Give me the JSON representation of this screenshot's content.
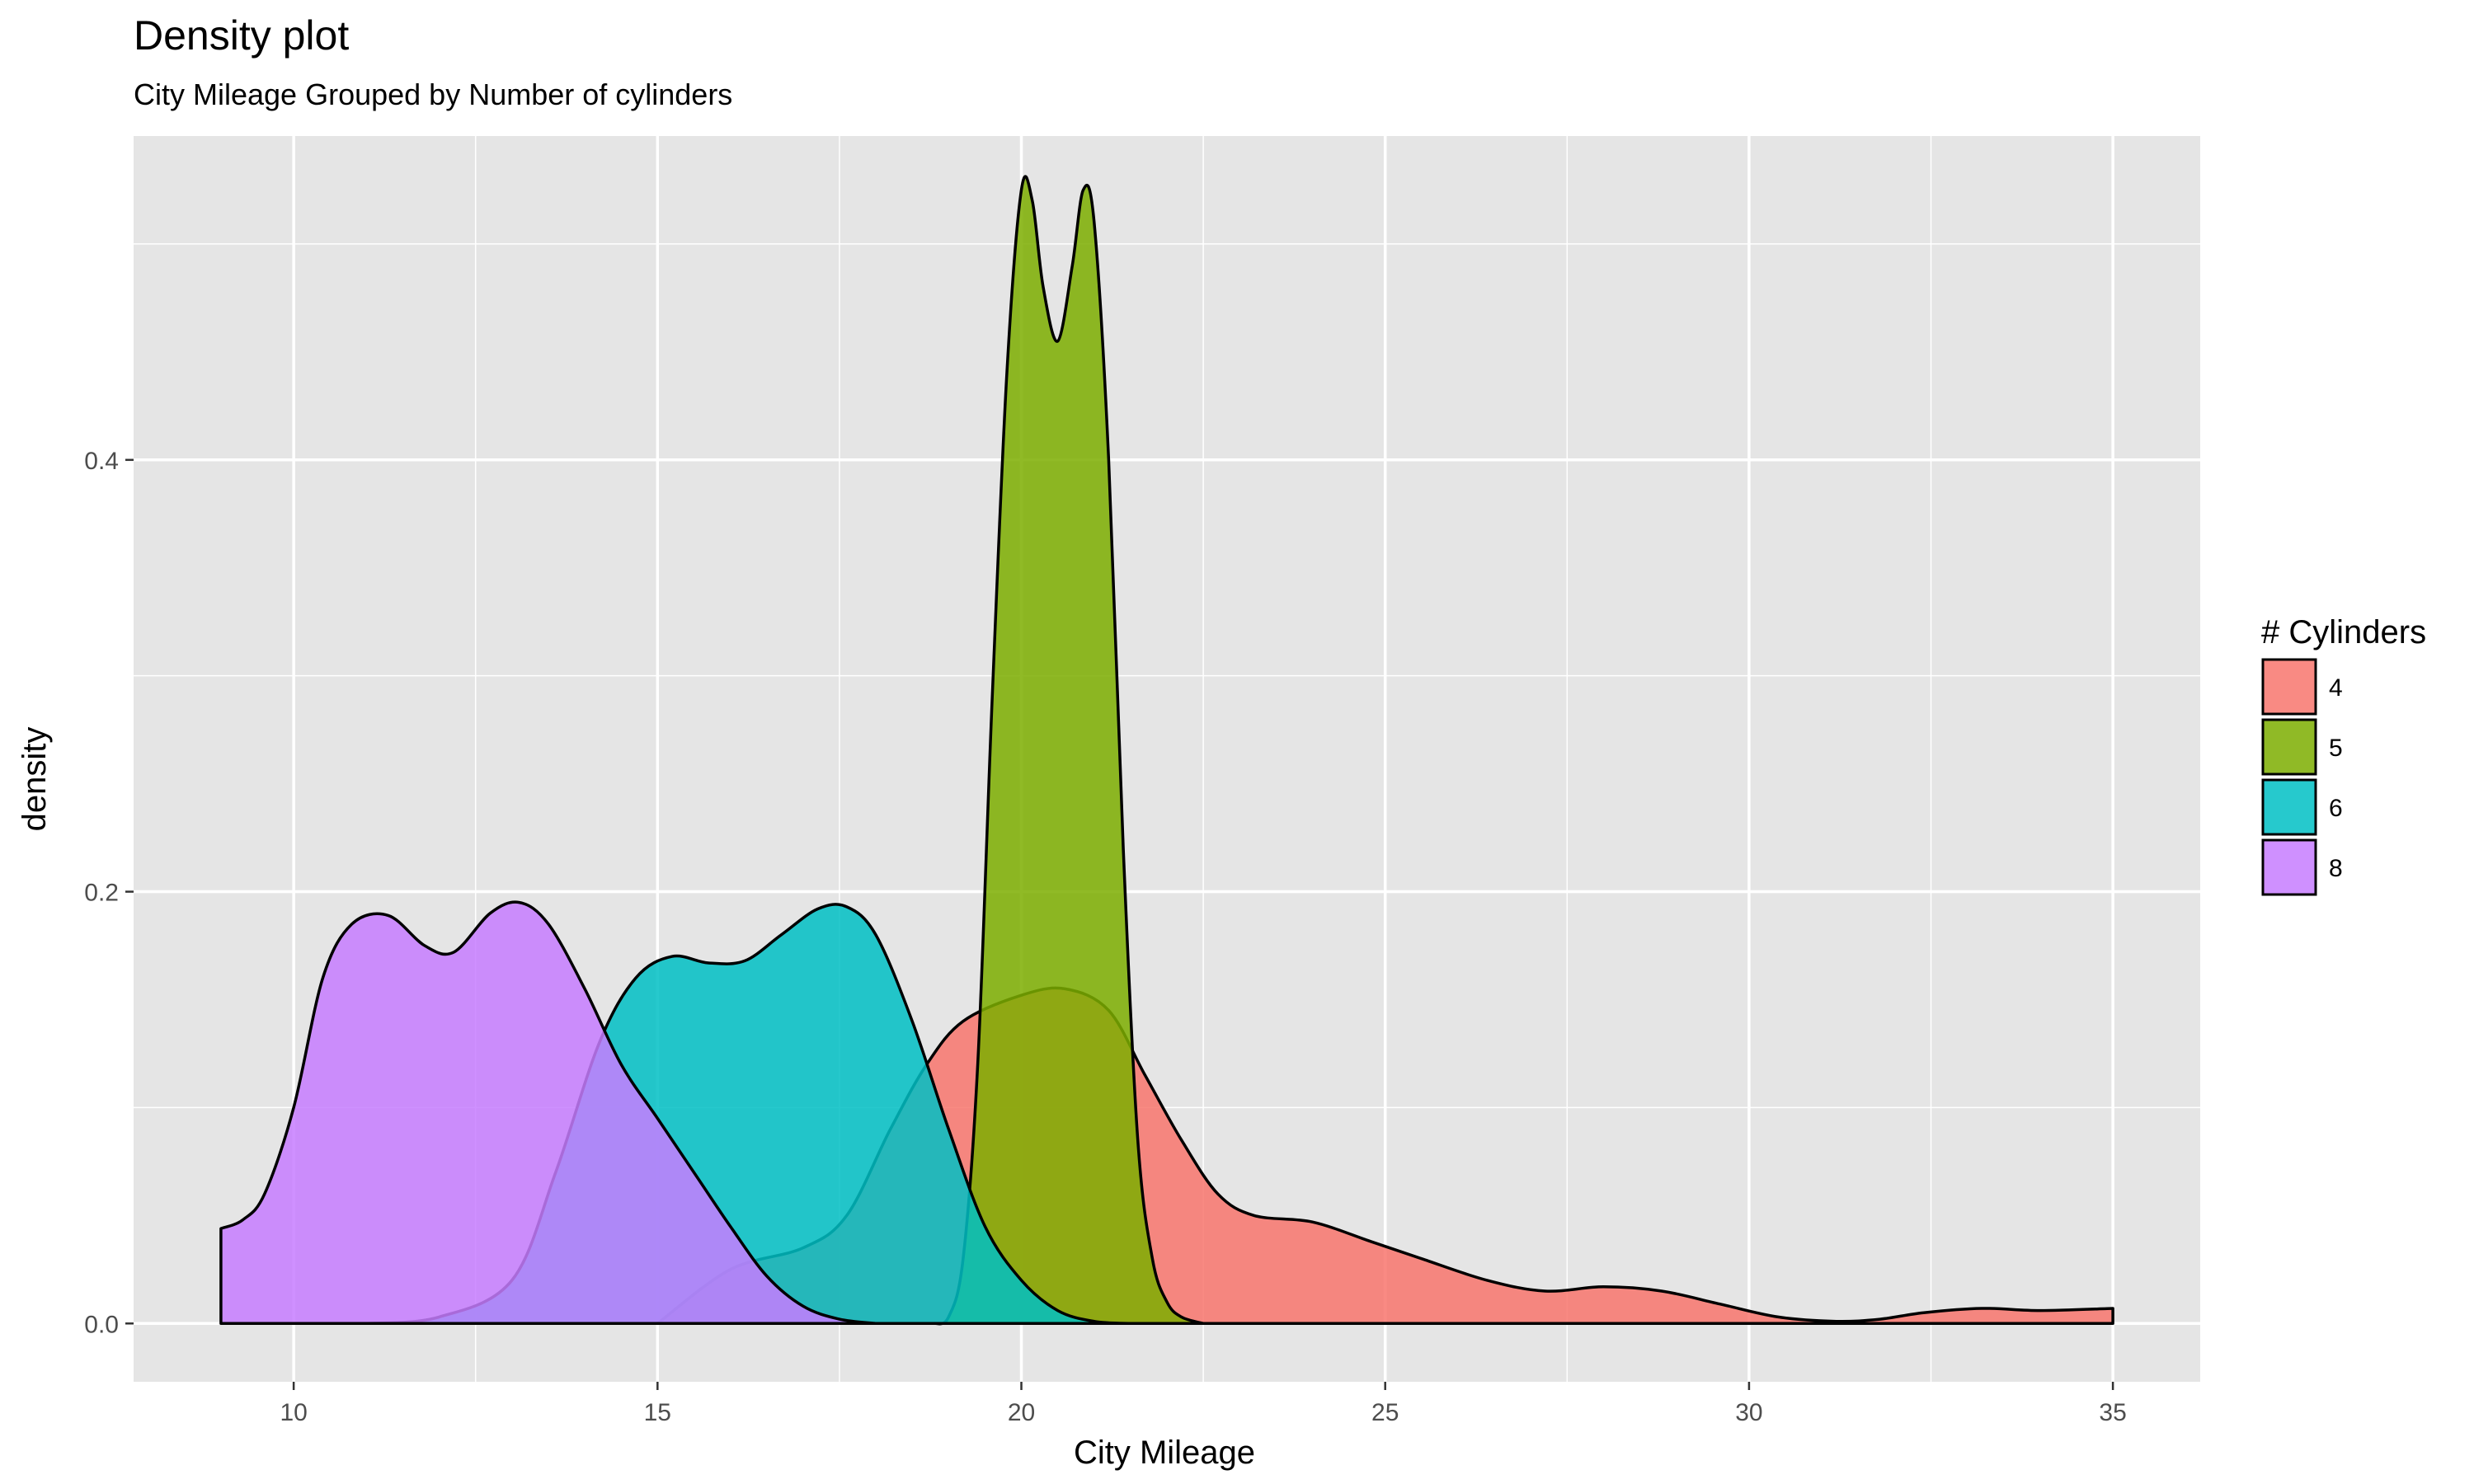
{
  "chart_data": {
    "type": "area",
    "subtype": "density",
    "title": "Density plot",
    "subtitle": "City Mileage Grouped by Number of cylinders",
    "xlabel": "City Mileage",
    "ylabel": "density",
    "xlim": [
      7.8,
      36.2
    ],
    "ylim": [
      -0.027,
      0.55
    ],
    "x_ticks": [
      10,
      15,
      20,
      25,
      30,
      35
    ],
    "y_ticks": [
      0.0,
      0.2,
      0.4
    ],
    "x_tick_labels": [
      "10",
      "15",
      "20",
      "25",
      "30",
      "35"
    ],
    "y_tick_labels": [
      "0.0",
      "0.2",
      "0.4"
    ],
    "grid": true,
    "legend": {
      "title": "# Cylinders",
      "position": "right"
    },
    "panel_background": "#e5e5e5",
    "grid_color": "#ffffff",
    "series": [
      {
        "name": "4",
        "color": "#f8766d",
        "points": [
          [
            15,
            0
          ],
          [
            16,
            0.025
          ],
          [
            17,
            0.035
          ],
          [
            17.6,
            0.05
          ],
          [
            18.2,
            0.09
          ],
          [
            18.7,
            0.12
          ],
          [
            19.2,
            0.14
          ],
          [
            20,
            0.152
          ],
          [
            20.6,
            0.155
          ],
          [
            21.2,
            0.145
          ],
          [
            21.7,
            0.115
          ],
          [
            22.2,
            0.085
          ],
          [
            22.7,
            0.06
          ],
          [
            23.2,
            0.05
          ],
          [
            24,
            0.047
          ],
          [
            24.8,
            0.038
          ],
          [
            25.5,
            0.03
          ],
          [
            26.4,
            0.02
          ],
          [
            27.2,
            0.015
          ],
          [
            28,
            0.017
          ],
          [
            28.8,
            0.015
          ],
          [
            29.6,
            0.009
          ],
          [
            30.4,
            0.003
          ],
          [
            31.2,
            0.001
          ],
          [
            31.8,
            0.002
          ],
          [
            32.4,
            0.005
          ],
          [
            33.2,
            0.007
          ],
          [
            34,
            0.006
          ],
          [
            35,
            0.007
          ]
        ]
      },
      {
        "name": "5",
        "color": "#7cae00",
        "points": [
          [
            18.8,
            0
          ],
          [
            19.0,
            0.003
          ],
          [
            19.2,
            0.03
          ],
          [
            19.4,
            0.12
          ],
          [
            19.6,
            0.29
          ],
          [
            19.8,
            0.44
          ],
          [
            20.0,
            0.525
          ],
          [
            20.15,
            0.52
          ],
          [
            20.3,
            0.48
          ],
          [
            20.5,
            0.455
          ],
          [
            20.7,
            0.49
          ],
          [
            20.85,
            0.525
          ],
          [
            21.0,
            0.51
          ],
          [
            21.2,
            0.4
          ],
          [
            21.4,
            0.22
          ],
          [
            21.6,
            0.085
          ],
          [
            21.8,
            0.03
          ],
          [
            22.0,
            0.01
          ],
          [
            22.2,
            0.003
          ],
          [
            22.5,
            0
          ]
        ]
      },
      {
        "name": "6",
        "color": "#00bfc4",
        "points": [
          [
            11,
            0
          ],
          [
            12,
            0.003
          ],
          [
            13,
            0.02
          ],
          [
            13.6,
            0.07
          ],
          [
            14.2,
            0.13
          ],
          [
            14.7,
            0.16
          ],
          [
            15.2,
            0.17
          ],
          [
            15.7,
            0.167
          ],
          [
            16.2,
            0.168
          ],
          [
            16.7,
            0.18
          ],
          [
            17.2,
            0.192
          ],
          [
            17.6,
            0.193
          ],
          [
            18.0,
            0.18
          ],
          [
            18.5,
            0.14
          ],
          [
            19.0,
            0.09
          ],
          [
            19.5,
            0.045
          ],
          [
            20.0,
            0.02
          ],
          [
            20.5,
            0.006
          ],
          [
            21.0,
            0.001
          ],
          [
            21.5,
            0
          ]
        ]
      },
      {
        "name": "8",
        "color": "#c77cff",
        "points": [
          [
            9,
            0.044
          ],
          [
            9.3,
            0.048
          ],
          [
            9.6,
            0.06
          ],
          [
            10,
            0.1
          ],
          [
            10.4,
            0.16
          ],
          [
            10.8,
            0.185
          ],
          [
            11.3,
            0.189
          ],
          [
            11.8,
            0.175
          ],
          [
            12.2,
            0.172
          ],
          [
            12.7,
            0.19
          ],
          [
            13.1,
            0.195
          ],
          [
            13.5,
            0.185
          ],
          [
            14,
            0.155
          ],
          [
            14.5,
            0.12
          ],
          [
            15,
            0.095
          ],
          [
            15.5,
            0.07
          ],
          [
            16,
            0.045
          ],
          [
            16.5,
            0.022
          ],
          [
            17,
            0.008
          ],
          [
            17.5,
            0.002
          ],
          [
            18,
            0
          ]
        ]
      }
    ]
  }
}
